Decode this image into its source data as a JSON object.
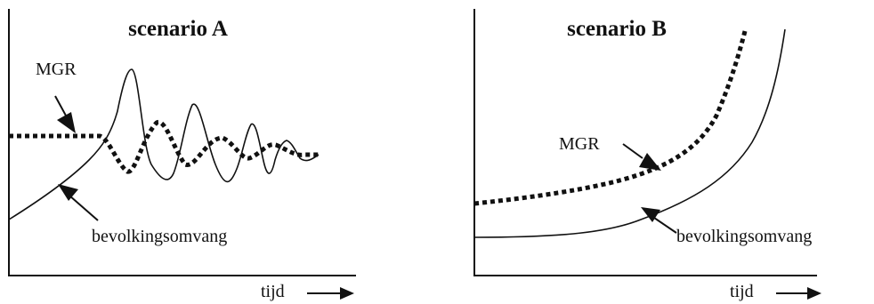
{
  "panels": [
    {
      "title": "scenario A",
      "labels": {
        "mgr": "MGR",
        "population": "bevolkingsomvang",
        "time": "tijd"
      },
      "curves": {
        "mgr": "flat then damped oscillation",
        "population": "rising then damped oscillation"
      }
    },
    {
      "title": "scenario B",
      "labels": {
        "mgr": "MGR",
        "population": "bevolkingsomvang",
        "time": "tijd"
      },
      "curves": {
        "mgr": "exponential rise (above population)",
        "population": "exponential rise"
      }
    }
  ],
  "colors": {
    "ink": "#111111",
    "background": "#ffffff"
  }
}
